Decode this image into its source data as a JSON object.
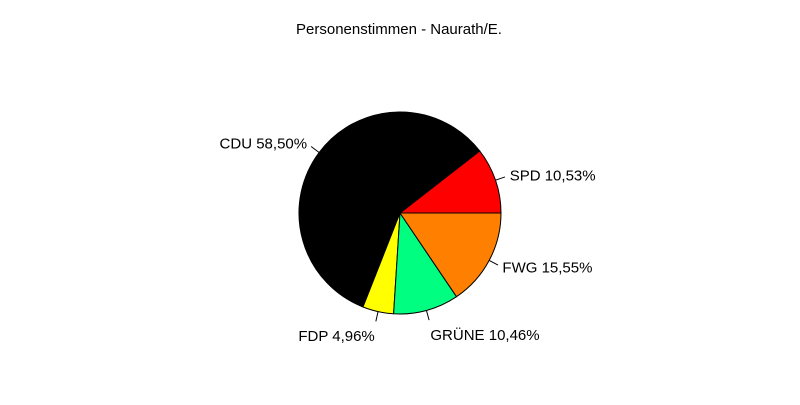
{
  "chart_data": {
    "type": "pie",
    "title": "Personenstimmen - Naurath/E.",
    "start_angle_deg": 0,
    "direction": "counterclockwise",
    "slices": [
      {
        "name": "SPD",
        "value": 10.53,
        "label": "SPD 10,53%",
        "color": "#ff0000"
      },
      {
        "name": "CDU",
        "value": 58.5,
        "label": "CDU 58,50%",
        "color": "#000000"
      },
      {
        "name": "FDP",
        "value": 4.96,
        "label": "FDP 4,96%",
        "color": "#ffff00"
      },
      {
        "name": "GRÜNE",
        "value": 10.46,
        "label": "GRÜNE 10,46%",
        "color": "#00ff80"
      },
      {
        "name": "FWG",
        "value": 15.55,
        "label": "FWG 15,55%",
        "color": "#ff8000"
      }
    ]
  }
}
